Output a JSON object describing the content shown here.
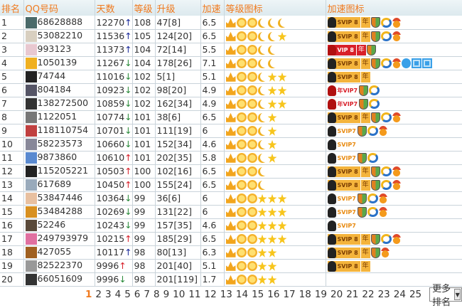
{
  "header": {
    "rank": "排名",
    "qq": "QQ号码",
    "days": "天数",
    "level": "等级",
    "upgrade": "升级",
    "speed": "加速",
    "level_icons": "等级图标",
    "speed_icons": "加速图标"
  },
  "colors": {
    "header_text": "#f07a1e",
    "up_blue": "#1a2a9a",
    "up_red": "#d8202a",
    "down": "#2a8a3a"
  },
  "rows": [
    {
      "rank": "1",
      "qq": "68628888",
      "days": "12270",
      "trend": "up-blue",
      "level": "108",
      "upgrade": "47[8]",
      "speed": "6.5",
      "level_icons": [
        "crown",
        "sun",
        "sun",
        "moon",
        "moon",
        "moon"
      ],
      "speed_icons": [
        "svip8",
        "nian",
        "shield",
        "tencent",
        "medal"
      ]
    },
    {
      "rank": "2",
      "qq": "53082210",
      "days": "11536",
      "trend": "up-blue",
      "level": "105",
      "upgrade": "124[20]",
      "speed": "6.5",
      "level_icons": [
        "crown",
        "sun",
        "sun",
        "moon",
        "moon",
        "star"
      ],
      "speed_icons": [
        "svip8",
        "nian",
        "shield",
        "tencent",
        "medal"
      ]
    },
    {
      "rank": "3",
      "qq": "993123",
      "days": "11373",
      "trend": "up-blue",
      "level": "104",
      "upgrade": "72[14]",
      "speed": "5.5",
      "level_icons": [
        "crown",
        "sun",
        "sun",
        "moon",
        "moon"
      ],
      "speed_icons": [
        "vip8",
        "nian",
        "shield"
      ]
    },
    {
      "rank": "4",
      "qq": "1050139",
      "days": "11267",
      "trend": "down",
      "level": "104",
      "upgrade": "178[26]",
      "speed": "7.1",
      "level_icons": [
        "crown",
        "sun",
        "sun",
        "moon",
        "moon"
      ],
      "speed_icons": [
        "svip8",
        "nian",
        "shield",
        "tencent",
        "medal",
        "qqblue",
        "doc",
        "cal"
      ]
    },
    {
      "rank": "5",
      "qq": "74744",
      "days": "11016",
      "trend": "down",
      "level": "102",
      "upgrade": "5[1]",
      "speed": "5.1",
      "level_icons": [
        "crown",
        "sun",
        "sun",
        "moon",
        "star",
        "star"
      ],
      "speed_icons": [
        "svip8",
        "nian"
      ]
    },
    {
      "rank": "6",
      "qq": "804184",
      "days": "10923",
      "trend": "down",
      "level": "102",
      "upgrade": "98[20]",
      "speed": "4.9",
      "level_icons": [
        "crown",
        "sun",
        "sun",
        "moon",
        "star",
        "star"
      ],
      "speed_icons": [
        "vip7",
        "shield",
        "tencent"
      ]
    },
    {
      "rank": "7",
      "qq": "138272500",
      "days": "10859",
      "trend": "down",
      "level": "102",
      "upgrade": "162[34]",
      "speed": "4.9",
      "level_icons": [
        "crown",
        "sun",
        "sun",
        "moon",
        "star",
        "star"
      ],
      "speed_icons": [
        "vip7",
        "shield",
        "tencent"
      ]
    },
    {
      "rank": "8",
      "qq": "1122051",
      "days": "10774",
      "trend": "down",
      "level": "101",
      "upgrade": "38[6]",
      "speed": "6.5",
      "level_icons": [
        "crown",
        "sun",
        "sun",
        "moon",
        "star"
      ],
      "speed_icons": [
        "svip8",
        "nian",
        "shield",
        "tencent",
        "medal"
      ]
    },
    {
      "rank": "9",
      "qq": "118110754",
      "days": "10701",
      "trend": "down",
      "level": "101",
      "upgrade": "111[19]",
      "speed": "6",
      "level_icons": [
        "crown",
        "sun",
        "sun",
        "moon",
        "star"
      ],
      "speed_icons": [
        "svip7",
        "shield",
        "tencent",
        "medal"
      ]
    },
    {
      "rank": "10",
      "qq": "58223573",
      "days": "10660",
      "trend": "down",
      "level": "101",
      "upgrade": "152[34]",
      "speed": "4.6",
      "level_icons": [
        "crown",
        "sun",
        "sun",
        "moon",
        "star"
      ],
      "speed_icons": [
        "svip7"
      ]
    },
    {
      "rank": "11",
      "qq": "9873860",
      "days": "10610",
      "trend": "up-red",
      "level": "101",
      "upgrade": "202[35]",
      "speed": "5.8",
      "level_icons": [
        "crown",
        "sun",
        "sun",
        "moon",
        "star"
      ],
      "speed_icons": [
        "svip7",
        "shield",
        "tencent"
      ]
    },
    {
      "rank": "12",
      "qq": "115205221",
      "days": "10503",
      "trend": "up-red",
      "level": "100",
      "upgrade": "102[16]",
      "speed": "6.5",
      "level_icons": [
        "crown",
        "sun",
        "sun",
        "moon"
      ],
      "speed_icons": [
        "svip8",
        "nian",
        "shield",
        "tencent",
        "medal"
      ]
    },
    {
      "rank": "13",
      "qq": "617689",
      "days": "10450",
      "trend": "up-red",
      "level": "100",
      "upgrade": "155[24]",
      "speed": "6.5",
      "level_icons": [
        "crown",
        "sun",
        "sun",
        "moon"
      ],
      "speed_icons": [
        "svip8",
        "nian",
        "shield",
        "tencent",
        "medal"
      ]
    },
    {
      "rank": "14",
      "qq": "53847446",
      "days": "10364",
      "trend": "down",
      "level": "99",
      "upgrade": "36[6]",
      "speed": "6",
      "level_icons": [
        "crown",
        "sun",
        "sun",
        "star",
        "star",
        "star"
      ],
      "speed_icons": [
        "svip7",
        "shield",
        "tencent",
        "medal"
      ]
    },
    {
      "rank": "15",
      "qq": "53484288",
      "days": "10269",
      "trend": "down",
      "level": "99",
      "upgrade": "131[22]",
      "speed": "6",
      "level_icons": [
        "crown",
        "sun",
        "sun",
        "star",
        "star",
        "star"
      ],
      "speed_icons": [
        "svip7",
        "shield",
        "tencent",
        "medal"
      ]
    },
    {
      "rank": "16",
      "qq": "52246",
      "days": "10243",
      "trend": "down",
      "level": "99",
      "upgrade": "157[35]",
      "speed": "4.6",
      "level_icons": [
        "crown",
        "sun",
        "sun",
        "star",
        "star",
        "star"
      ],
      "speed_icons": [
        "svip7"
      ]
    },
    {
      "rank": "17",
      "qq": "249793979",
      "days": "10215",
      "trend": "up-red",
      "level": "99",
      "upgrade": "185[29]",
      "speed": "6.5",
      "level_icons": [
        "crown",
        "sun",
        "sun",
        "star",
        "star",
        "star"
      ],
      "speed_icons": [
        "svip8",
        "nian",
        "shield",
        "tencent",
        "medal"
      ]
    },
    {
      "rank": "18",
      "qq": "427055",
      "days": "10117",
      "trend": "up-blue",
      "level": "98",
      "upgrade": "80[13]",
      "speed": "6.3",
      "level_icons": [
        "crown",
        "sun",
        "sun",
        "star",
        "star"
      ],
      "speed_icons": [
        "svip8",
        "nian",
        "shield",
        "medal"
      ]
    },
    {
      "rank": "19",
      "qq": "82522370",
      "days": "9996",
      "trend": "up-red",
      "level": "98",
      "upgrade": "201[40]",
      "speed": "5.1",
      "level_icons": [
        "crown",
        "sun",
        "sun",
        "star",
        "star"
      ],
      "speed_icons": [
        "svip8",
        "nian"
      ]
    },
    {
      "rank": "20",
      "qq": "66051609",
      "days": "9996",
      "trend": "down",
      "level": "98",
      "upgrade": "201[119]",
      "speed": "1.7",
      "level_icons": [
        "crown",
        "sun",
        "sun",
        "star",
        "star"
      ],
      "speed_icons": []
    }
  ],
  "icon_text": {
    "svip8": "SVIP 8",
    "svip7": "SVIP7",
    "vip8": "VIP 8",
    "vip7": "年VIP7",
    "nian": "年",
    "up": "↑",
    "down": "↓"
  },
  "pagination": {
    "current": "1",
    "pages": [
      "1",
      "2",
      "3",
      "4",
      "5",
      "6",
      "7",
      "8",
      "9",
      "10",
      "11",
      "12",
      "13",
      "14",
      "15",
      "16",
      "17",
      "18",
      "19",
      "20",
      "21",
      "22",
      "23",
      "24",
      "25"
    ],
    "more_label": "更多排名"
  }
}
